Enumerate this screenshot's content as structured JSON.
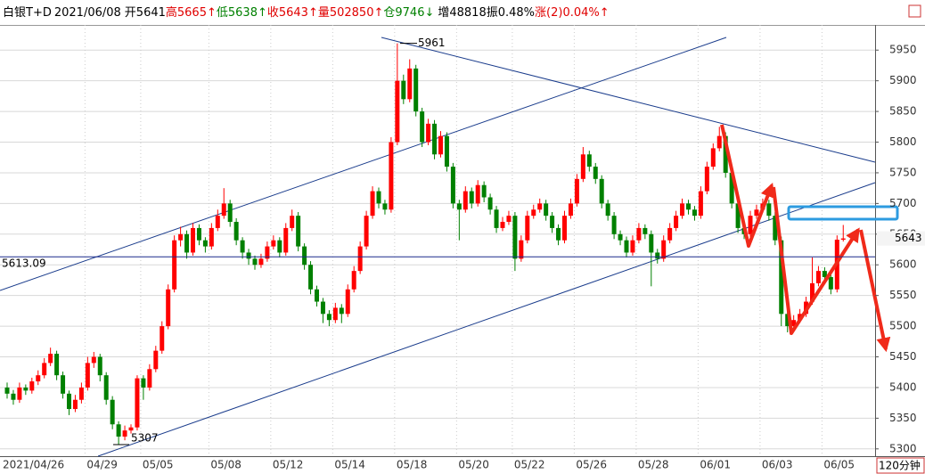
{
  "header": {
    "items": [
      "白银T+D",
      "2021/06/08",
      "开5641",
      "高5665↑",
      "低5638↑",
      "收5643↑",
      "量502850↑",
      "仓9746↓",
      "增48818",
      "振0.48%",
      "涨(2)0.04%↑"
    ],
    "colors": [
      "#000",
      "#000",
      "#000",
      "#e00000",
      "#008000",
      "#e00000",
      "#e00000",
      "#008000",
      "#000",
      "#000",
      "#e00000"
    ]
  },
  "chart_data": {
    "type": "candlestick",
    "up_color": "#ff0000",
    "down_color": "#008000",
    "ylim": [
      5291,
      5991
    ],
    "yticks": [
      5300,
      5350,
      5400,
      5450,
      5500,
      5550,
      5600,
      5650,
      5700,
      5750,
      5800,
      5850,
      5900,
      5950
    ],
    "grid": true,
    "hline": 5613.09,
    "high_label": 5961,
    "low_label": 5307,
    "last_price": 5643,
    "timeframe": "120分钟",
    "categories": [
      "2021/04/26",
      null,
      null,
      null,
      null,
      null,
      null,
      null,
      null,
      null,
      null,
      null,
      null,
      "04/29",
      null,
      null,
      null,
      null,
      null,
      null,
      null,
      null,
      "05/05",
      null,
      null,
      null,
      null,
      null,
      null,
      null,
      null,
      null,
      null,
      "05/08",
      null,
      null,
      null,
      null,
      null,
      null,
      null,
      null,
      null,
      "05/12",
      null,
      null,
      null,
      null,
      null,
      null,
      null,
      null,
      null,
      "05/14",
      null,
      null,
      null,
      null,
      null,
      null,
      null,
      null,
      null,
      "05/18",
      null,
      null,
      null,
      null,
      null,
      null,
      null,
      null,
      null,
      "05/20",
      null,
      null,
      null,
      null,
      null,
      null,
      null,
      null,
      "05/22",
      null,
      null,
      null,
      null,
      null,
      null,
      null,
      null,
      null,
      "05/26",
      null,
      null,
      null,
      null,
      null,
      null,
      null,
      null,
      null,
      "05/28",
      null,
      null,
      null,
      null,
      null,
      null,
      null,
      null,
      null,
      "06/01",
      null,
      null,
      null,
      null,
      null,
      null,
      null,
      null,
      null,
      "06/03",
      null,
      null,
      null,
      null,
      null,
      null,
      null,
      null,
      null,
      "06/05",
      null,
      null,
      null
    ],
    "ohlc": [
      [
        5400,
        5408,
        5382,
        5390
      ],
      [
        5390,
        5396,
        5372,
        5380
      ],
      [
        5380,
        5408,
        5375,
        5400
      ],
      [
        5400,
        5405,
        5388,
        5395
      ],
      [
        5395,
        5416,
        5390,
        5410
      ],
      [
        5410,
        5428,
        5404,
        5420
      ],
      [
        5420,
        5448,
        5415,
        5440
      ],
      [
        5440,
        5465,
        5435,
        5455
      ],
      [
        5455,
        5460,
        5412,
        5420
      ],
      [
        5420,
        5426,
        5382,
        5390
      ],
      [
        5390,
        5395,
        5355,
        5365
      ],
      [
        5365,
        5388,
        5360,
        5380
      ],
      [
        5380,
        5408,
        5374,
        5400
      ],
      [
        5400,
        5450,
        5395,
        5440
      ],
      [
        5440,
        5458,
        5432,
        5450
      ],
      [
        5450,
        5455,
        5410,
        5420
      ],
      [
        5420,
        5425,
        5372,
        5380
      ],
      [
        5380,
        5386,
        5332,
        5340
      ],
      [
        5340,
        5345,
        5307,
        5320
      ],
      [
        5320,
        5338,
        5314,
        5330
      ],
      [
        5330,
        5340,
        5325,
        5335
      ],
      [
        5335,
        5420,
        5330,
        5415
      ],
      [
        5415,
        5420,
        5380,
        5400
      ],
      [
        5400,
        5438,
        5395,
        5430
      ],
      [
        5430,
        5468,
        5425,
        5460
      ],
      [
        5460,
        5508,
        5455,
        5500
      ],
      [
        5500,
        5568,
        5495,
        5560
      ],
      [
        5560,
        5648,
        5555,
        5640
      ],
      [
        5640,
        5662,
        5630,
        5650
      ],
      [
        5650,
        5656,
        5610,
        5620
      ],
      [
        5620,
        5668,
        5615,
        5660
      ],
      [
        5660,
        5666,
        5632,
        5640
      ],
      [
        5640,
        5645,
        5620,
        5630
      ],
      [
        5630,
        5668,
        5625,
        5660
      ],
      [
        5660,
        5690,
        5655,
        5680
      ],
      [
        5680,
        5725,
        5675,
        5700
      ],
      [
        5700,
        5706,
        5662,
        5670
      ],
      [
        5670,
        5676,
        5632,
        5640
      ],
      [
        5640,
        5645,
        5610,
        5620
      ],
      [
        5620,
        5626,
        5600,
        5610
      ],
      [
        5610,
        5615,
        5592,
        5600
      ],
      [
        5600,
        5618,
        5595,
        5610
      ],
      [
        5610,
        5638,
        5605,
        5630
      ],
      [
        5630,
        5648,
        5625,
        5640
      ],
      [
        5640,
        5645,
        5612,
        5620
      ],
      [
        5620,
        5668,
        5615,
        5660
      ],
      [
        5660,
        5690,
        5655,
        5680
      ],
      [
        5680,
        5686,
        5622,
        5630
      ],
      [
        5630,
        5635,
        5592,
        5600
      ],
      [
        5600,
        5606,
        5552,
        5560
      ],
      [
        5560,
        5566,
        5532,
        5540
      ],
      [
        5540,
        5546,
        5505,
        5520
      ],
      [
        5520,
        5526,
        5500,
        5510
      ],
      [
        5510,
        5538,
        5505,
        5530
      ],
      [
        5530,
        5536,
        5505,
        5520
      ],
      [
        5520,
        5568,
        5515,
        5560
      ],
      [
        5560,
        5598,
        5555,
        5590
      ],
      [
        5590,
        5638,
        5585,
        5630
      ],
      [
        5630,
        5688,
        5625,
        5680
      ],
      [
        5680,
        5728,
        5675,
        5720
      ],
      [
        5720,
        5726,
        5692,
        5700
      ],
      [
        5700,
        5706,
        5682,
        5690
      ],
      [
        5690,
        5808,
        5685,
        5800
      ],
      [
        5800,
        5961,
        5795,
        5900
      ],
      [
        5900,
        5910,
        5862,
        5870
      ],
      [
        5870,
        5935,
        5865,
        5920
      ],
      [
        5920,
        5926,
        5842,
        5850
      ],
      [
        5850,
        5856,
        5792,
        5800
      ],
      [
        5800,
        5838,
        5795,
        5830
      ],
      [
        5830,
        5836,
        5772,
        5780
      ],
      [
        5780,
        5818,
        5775,
        5810
      ],
      [
        5810,
        5816,
        5752,
        5760
      ],
      [
        5760,
        5766,
        5692,
        5700
      ],
      [
        5700,
        5706,
        5640,
        5690
      ],
      [
        5690,
        5728,
        5685,
        5720
      ],
      [
        5720,
        5726,
        5692,
        5700
      ],
      [
        5700,
        5738,
        5695,
        5730
      ],
      [
        5730,
        5736,
        5702,
        5710
      ],
      [
        5710,
        5716,
        5682,
        5690
      ],
      [
        5690,
        5696,
        5652,
        5660
      ],
      [
        5660,
        5678,
        5655,
        5670
      ],
      [
        5670,
        5688,
        5665,
        5680
      ],
      [
        5680,
        5686,
        5590,
        5610
      ],
      [
        5610,
        5648,
        5605,
        5640
      ],
      [
        5640,
        5688,
        5635,
        5680
      ],
      [
        5680,
        5698,
        5675,
        5690
      ],
      [
        5690,
        5708,
        5685,
        5700
      ],
      [
        5700,
        5706,
        5672,
        5680
      ],
      [
        5680,
        5686,
        5652,
        5660
      ],
      [
        5660,
        5666,
        5632,
        5640
      ],
      [
        5640,
        5688,
        5635,
        5680
      ],
      [
        5680,
        5708,
        5675,
        5700
      ],
      [
        5700,
        5748,
        5695,
        5740
      ],
      [
        5740,
        5792,
        5735,
        5780
      ],
      [
        5780,
        5786,
        5752,
        5760
      ],
      [
        5760,
        5766,
        5732,
        5740
      ],
      [
        5740,
        5746,
        5692,
        5700
      ],
      [
        5700,
        5706,
        5672,
        5680
      ],
      [
        5680,
        5686,
        5642,
        5650
      ],
      [
        5650,
        5656,
        5632,
        5640
      ],
      [
        5640,
        5646,
        5612,
        5620
      ],
      [
        5620,
        5648,
        5615,
        5640
      ],
      [
        5640,
        5668,
        5635,
        5660
      ],
      [
        5660,
        5666,
        5642,
        5650
      ],
      [
        5650,
        5656,
        5565,
        5620
      ],
      [
        5620,
        5626,
        5602,
        5610
      ],
      [
        5610,
        5648,
        5605,
        5640
      ],
      [
        5640,
        5668,
        5635,
        5660
      ],
      [
        5660,
        5688,
        5655,
        5680
      ],
      [
        5680,
        5708,
        5675,
        5700
      ],
      [
        5700,
        5706,
        5682,
        5690
      ],
      [
        5690,
        5696,
        5672,
        5680
      ],
      [
        5680,
        5728,
        5675,
        5720
      ],
      [
        5720,
        5768,
        5715,
        5760
      ],
      [
        5760,
        5798,
        5755,
        5790
      ],
      [
        5790,
        5825,
        5785,
        5810
      ],
      [
        5810,
        5816,
        5742,
        5750
      ],
      [
        5750,
        5756,
        5692,
        5700
      ],
      [
        5700,
        5706,
        5652,
        5660
      ],
      [
        5660,
        5666,
        5642,
        5650
      ],
      [
        5650,
        5688,
        5645,
        5680
      ],
      [
        5680,
        5698,
        5675,
        5690
      ],
      [
        5690,
        5708,
        5685,
        5700
      ],
      [
        5700,
        5706,
        5672,
        5680
      ],
      [
        5680,
        5686,
        5632,
        5640
      ],
      [
        5640,
        5646,
        5500,
        5520
      ],
      [
        5520,
        5526,
        5490,
        5500
      ],
      [
        5500,
        5518,
        5495,
        5510
      ],
      [
        5510,
        5528,
        5505,
        5520
      ],
      [
        5520,
        5548,
        5515,
        5540
      ],
      [
        5540,
        5612,
        5535,
        5570
      ],
      [
        5570,
        5598,
        5565,
        5590
      ],
      [
        5590,
        5596,
        5572,
        5580
      ],
      [
        5580,
        5586,
        5552,
        5560
      ],
      [
        5560,
        5648,
        5555,
        5641
      ],
      [
        5641,
        5665,
        5638,
        5643
      ]
    ]
  }
}
